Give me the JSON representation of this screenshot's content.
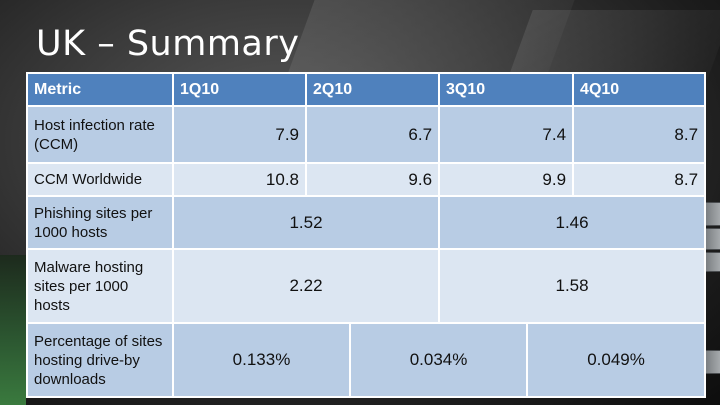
{
  "slide": {
    "title": "UK – Summary"
  },
  "table": {
    "headers": [
      "Metric",
      "1Q10",
      "2Q10",
      "3Q10",
      "4Q10"
    ],
    "rows": [
      {
        "metric": "Host infection rate (CCM)",
        "values": [
          "7.9",
          "6.7",
          "7.4",
          "8.7"
        ]
      },
      {
        "metric": "CCM Worldwide",
        "values": [
          "10.8",
          "9.6",
          "9.9",
          "8.7"
        ]
      },
      {
        "metric": "Phishing sites per 1000 hosts",
        "values": [
          "1.52",
          "1.46"
        ]
      },
      {
        "metric": "Malware hosting sites per 1000 hosts",
        "values": [
          "2.22",
          "1.58"
        ]
      },
      {
        "metric": "Percentage of sites hosting drive-by downloads",
        "values": [
          "0.133%",
          "0.034%",
          "0.049%"
        ]
      }
    ]
  }
}
